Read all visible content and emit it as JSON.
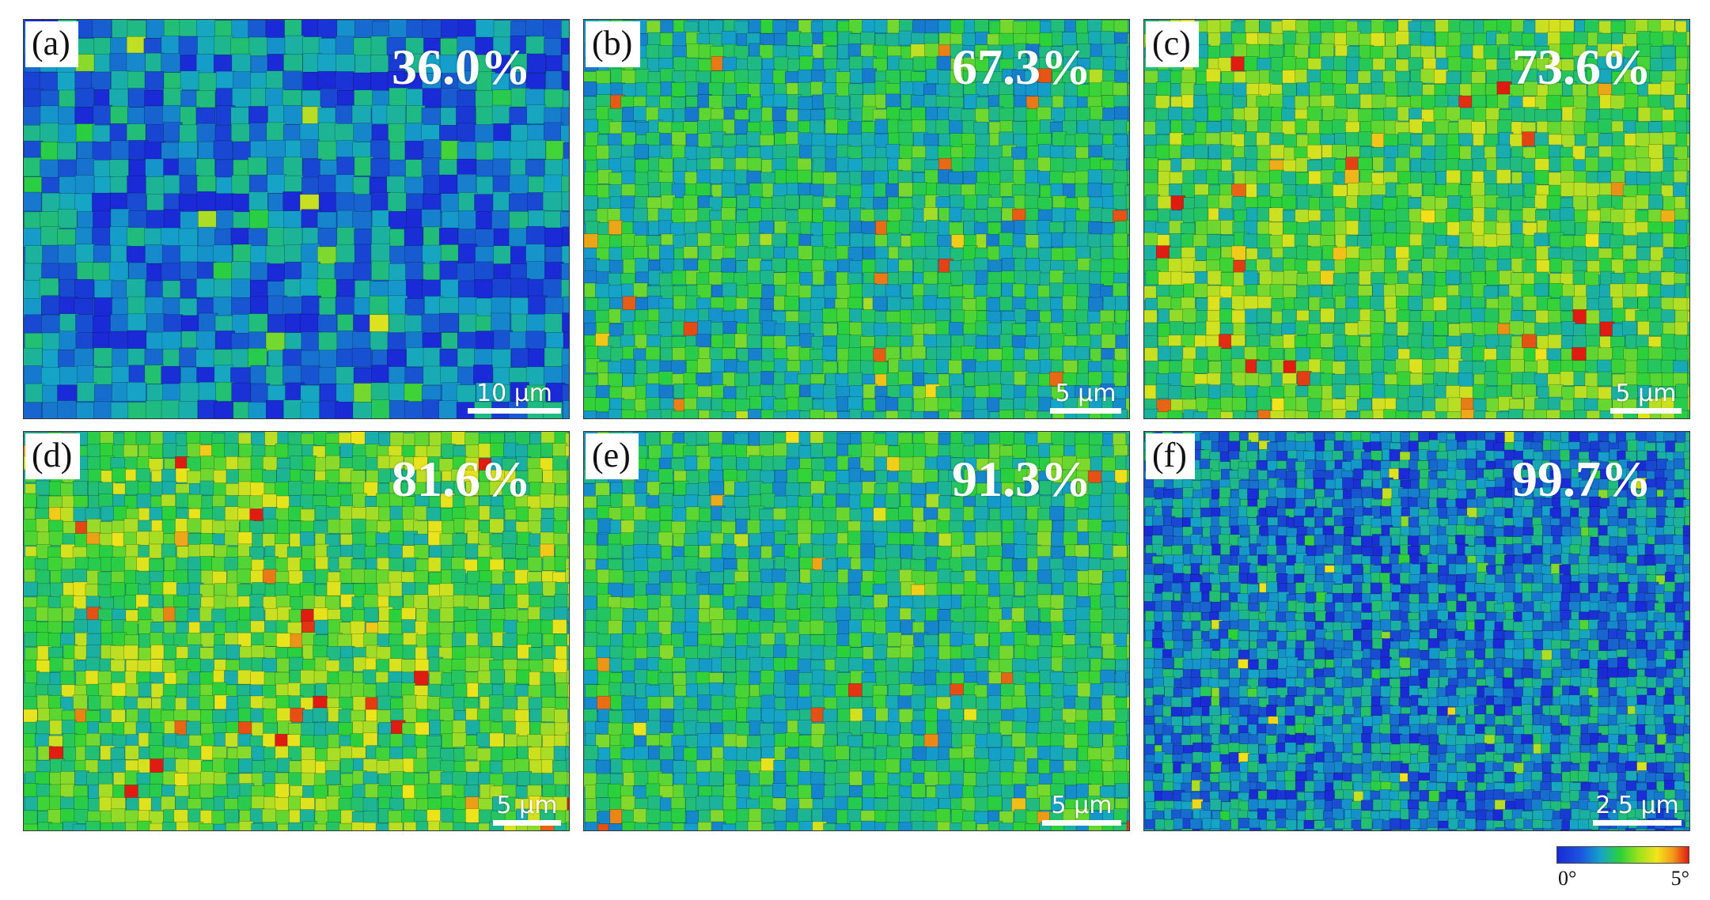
{
  "panels": [
    {
      "label": "(a)",
      "percentage": "36.0%",
      "scale": "10 µm",
      "mean_level": 0.18
    },
    {
      "label": "(b)",
      "percentage": "67.3%",
      "scale": "5 µm",
      "mean_level": 0.38
    },
    {
      "label": "(c)",
      "percentage": "73.6%",
      "scale": "5 µm",
      "mean_level": 0.5
    },
    {
      "label": "(d)",
      "percentage": "81.6%",
      "scale": "5 µm",
      "mean_level": 0.52
    },
    {
      "label": "(e)",
      "percentage": "91.3%",
      "scale": "5 µm",
      "mean_level": 0.4
    },
    {
      "label": "(f)",
      "percentage": "99.7%",
      "scale": "2.5 µm",
      "mean_level": 0.2
    }
  ],
  "colorbar": {
    "min_label": "0°",
    "max_label": "5°",
    "colors": [
      "#1a2ad6",
      "#15a4c8",
      "#2bd13a",
      "#f3e41a",
      "#e01a12"
    ]
  }
}
